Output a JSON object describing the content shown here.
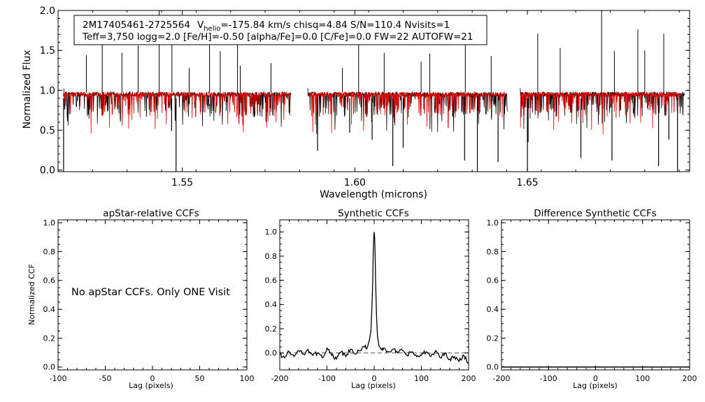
{
  "chart_data": [
    {
      "id": "spectrum",
      "type": "line",
      "xlabel": "Wavelength (microns)",
      "ylabel": "Normalized Flux",
      "xlim": [
        1.514,
        1.697
      ],
      "ylim": [
        -0.02,
        2.0
      ],
      "xticks": [
        1.55,
        1.6,
        1.65
      ],
      "xtick_labels": [
        "1.55",
        "1.60",
        "1.65"
      ],
      "yticks": [
        0.0,
        0.5,
        1.0,
        1.5,
        2.0
      ],
      "ytick_labels": [
        "0.0",
        "0.5",
        "1.0",
        "1.5",
        "2.0"
      ],
      "info_box": {
        "line1_star": "2M17405461-2725564",
        "line1_v": "V",
        "line1_sub": "helio",
        "line1_rest": "=-175.84 km/s  chisq=4.84  S/N=110.4  Nvisits=1",
        "line2": "Teff=3,750 logg=2.0 [Fe/H]=-0.50 [alpha/Fe]=0.0 [C/Fe]=0.0 FW=22 AUTOFW=21"
      },
      "series": [
        {
          "color": "#000000",
          "chips": [
            [
              1.5155,
              1.5815
            ],
            [
              1.5862,
              1.6442
            ],
            [
              1.6478,
              1.6955
            ]
          ],
          "continuum": 0.95
        },
        {
          "color": "#e00000",
          "chips": [
            [
              1.5155,
              1.5812
            ],
            [
              1.5866,
              1.6435
            ],
            [
              1.648,
              1.6945
            ]
          ],
          "continuum": 0.95
        }
      ],
      "spikes_up": [
        [
          1.5222,
          1.44
        ],
        [
          1.5268,
          1.62
        ],
        [
          1.5325,
          1.47
        ],
        [
          1.5372,
          1.56
        ],
        [
          1.5433,
          2.0
        ],
        [
          1.547,
          1.59
        ],
        [
          1.552,
          1.28
        ],
        [
          1.5579,
          1.65
        ],
        [
          1.561,
          1.49
        ],
        [
          1.566,
          1.71
        ],
        [
          1.5668,
          1.31
        ],
        [
          1.5757,
          1.34
        ],
        [
          1.5964,
          1.28
        ],
        [
          1.6011,
          1.76
        ],
        [
          1.6085,
          1.47
        ],
        [
          1.6192,
          1.36
        ],
        [
          1.6217,
          1.46
        ],
        [
          1.632,
          1.57
        ],
        [
          1.6395,
          1.43
        ],
        [
          1.653,
          1.71
        ],
        [
          1.6595,
          1.53
        ],
        [
          1.6715,
          2.0
        ],
        [
          1.6752,
          1.49
        ],
        [
          1.682,
          1.76
        ],
        [
          1.684,
          1.5
        ],
        [
          1.6895,
          1.71
        ]
      ],
      "spikes_down": [
        [
          1.5156,
          -0.02
        ],
        [
          1.5469,
          0.49
        ],
        [
          1.5482,
          -0.02
        ],
        [
          1.5892,
          0.24
        ],
        [
          1.5985,
          0.47
        ],
        [
          1.605,
          0.38
        ],
        [
          1.611,
          0.05
        ],
        [
          1.614,
          0.28
        ],
        [
          1.6318,
          0.12
        ],
        [
          1.6355,
          -0.02
        ],
        [
          1.6415,
          0.1
        ],
        [
          1.65,
          -0.02
        ],
        [
          1.6502,
          0.35
        ],
        [
          1.6655,
          0.15
        ],
        [
          1.6745,
          0.12
        ],
        [
          1.688,
          0.05
        ],
        [
          1.691,
          0.38
        ],
        [
          1.6935,
          -0.02
        ]
      ]
    },
    {
      "id": "ccf1",
      "type": "line",
      "title": "apStar-relative CCFs",
      "xlabel": "Lag (pixels)",
      "ylabel": "Normalized CCF",
      "xlim": [
        -100,
        100
      ],
      "ylim": [
        -0.02,
        1.02
      ],
      "xticks": [
        -100,
        -50,
        0,
        50,
        100
      ],
      "xtick_labels": [
        "-100",
        "-50",
        "0",
        "50",
        "100"
      ],
      "yticks": [
        0.0,
        0.2,
        0.4,
        0.6,
        0.8,
        1.0
      ],
      "ytick_labels": [
        "0.0",
        "0.2",
        "0.4",
        "0.6",
        "0.8",
        "1.0"
      ],
      "annotation": "No apStar CCFs.  Only ONE Visit",
      "series": []
    },
    {
      "id": "ccf2",
      "type": "line",
      "title": "Synthetic CCFs",
      "xlabel": "Lag (pixels)",
      "xlim": [
        -200,
        200
      ],
      "ylim": [
        -0.14,
        1.1
      ],
      "xticks": [
        -200,
        -100,
        0,
        100,
        200
      ],
      "xtick_labels": [
        "-200",
        "-100",
        "0",
        "100",
        "200"
      ],
      "yticks": [
        0.0,
        0.2,
        0.4,
        0.6,
        0.8,
        1.0
      ],
      "ytick_labels": [
        "0.0",
        "0.2",
        "0.4",
        "0.6",
        "0.8",
        "1.0"
      ],
      "baseline": 0.0,
      "series": [
        {
          "x": [
            -200,
            -190,
            -180,
            -170,
            -160,
            -150,
            -140,
            -130,
            -120,
            -110,
            -100,
            -90,
            -80,
            -70,
            -60,
            -50,
            -40,
            -30,
            -20,
            -15,
            -10,
            -7,
            -5,
            -3,
            -2,
            -1,
            0,
            1,
            2,
            3,
            5,
            7,
            10,
            15,
            20,
            30,
            40,
            50,
            60,
            70,
            80,
            90,
            100,
            110,
            120,
            130,
            140,
            150,
            160,
            170,
            180,
            190,
            200
          ],
          "y": [
            -0.01,
            -0.04,
            0.01,
            -0.03,
            0.02,
            -0.01,
            0.03,
            -0.02,
            0.0,
            -0.04,
            0.04,
            -0.02,
            -0.05,
            0.01,
            -0.03,
            0.03,
            -0.01,
            0.02,
            0.05,
            0.04,
            0.11,
            0.18,
            0.35,
            0.6,
            0.82,
            0.95,
            1.0,
            0.95,
            0.8,
            0.6,
            0.3,
            0.14,
            0.06,
            0.03,
            0.04,
            0.01,
            0.03,
            0.0,
            0.02,
            -0.02,
            0.01,
            -0.03,
            -0.02,
            0.01,
            -0.03,
            0.02,
            -0.04,
            0.0,
            -0.05,
            -0.03,
            -0.07,
            -0.02,
            -0.08
          ]
        }
      ]
    },
    {
      "id": "ccf3",
      "type": "line",
      "title": "Difference Synthetic CCFs",
      "xlabel": "Lag (pixels)",
      "xlim": [
        -200,
        200
      ],
      "ylim": [
        -0.02,
        1.02
      ],
      "xticks": [
        -200,
        -100,
        0,
        100,
        200
      ],
      "xtick_labels": [
        "-200",
        "-100",
        "0",
        "100",
        "200"
      ],
      "yticks": [
        0.0,
        0.2,
        0.4,
        0.6,
        0.8,
        1.0
      ],
      "ytick_labels": [
        "0.0",
        "0.2",
        "0.4",
        "0.6",
        "0.8",
        "1.0"
      ],
      "series": [
        {
          "x": [
            -200,
            200
          ],
          "y": [
            0.0,
            0.0
          ]
        }
      ]
    }
  ]
}
